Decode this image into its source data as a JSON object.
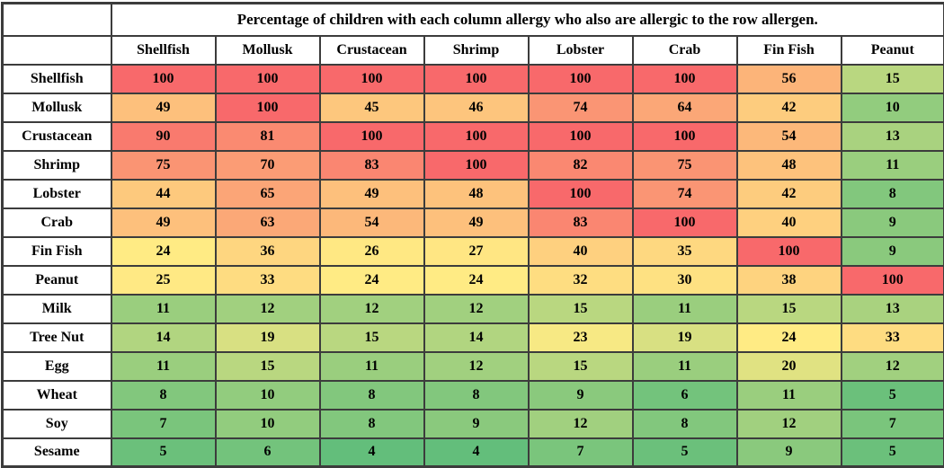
{
  "table": {
    "title": "Percentage of children with each column allergy who also are allergic to the row allergen."
  },
  "chart_data": {
    "type": "heatmap",
    "title": "Percentage of children with each column allergy who also are allergic to the row allergen.",
    "columns": [
      "Shellfish",
      "Mollusk",
      "Crustacean",
      "Shrimp",
      "Lobster",
      "Crab",
      "Fin Fish",
      "Peanut"
    ],
    "rows": [
      "Shellfish",
      "Mollusk",
      "Crustacean",
      "Shrimp",
      "Lobster",
      "Crab",
      "Fin Fish",
      "Peanut",
      "Milk",
      "Tree Nut",
      "Egg",
      "Wheat",
      "Soy",
      "Sesame"
    ],
    "values": [
      [
        100,
        100,
        100,
        100,
        100,
        100,
        56,
        15
      ],
      [
        49,
        100,
        45,
        46,
        74,
        64,
        42,
        10
      ],
      [
        90,
        81,
        100,
        100,
        100,
        100,
        54,
        13
      ],
      [
        75,
        70,
        83,
        100,
        82,
        75,
        48,
        11
      ],
      [
        44,
        65,
        49,
        48,
        100,
        74,
        42,
        8
      ],
      [
        49,
        63,
        54,
        49,
        83,
        100,
        40,
        9
      ],
      [
        24,
        36,
        26,
        27,
        40,
        35,
        100,
        9
      ],
      [
        25,
        33,
        24,
        24,
        32,
        30,
        38,
        100
      ],
      [
        11,
        12,
        12,
        12,
        15,
        11,
        15,
        13
      ],
      [
        14,
        19,
        15,
        14,
        23,
        19,
        24,
        33
      ],
      [
        11,
        15,
        11,
        12,
        15,
        11,
        20,
        12
      ],
      [
        8,
        10,
        8,
        8,
        9,
        6,
        11,
        5
      ],
      [
        7,
        10,
        8,
        9,
        12,
        8,
        12,
        7
      ],
      [
        5,
        6,
        4,
        4,
        7,
        5,
        9,
        5
      ]
    ],
    "color_scale": {
      "type": "3-color",
      "min_value": 4,
      "min_color": "#63BE7B",
      "mid_value": 24,
      "mid_color": "#FFEB84",
      "max_value": 100,
      "max_color": "#F8696B"
    },
    "layout": {
      "grid": true,
      "legend": false,
      "value_range": [
        4,
        100
      ]
    },
    "border_color": "#3C3C3C",
    "label_background": "#FFFFFF",
    "text_color": "#000000"
  }
}
